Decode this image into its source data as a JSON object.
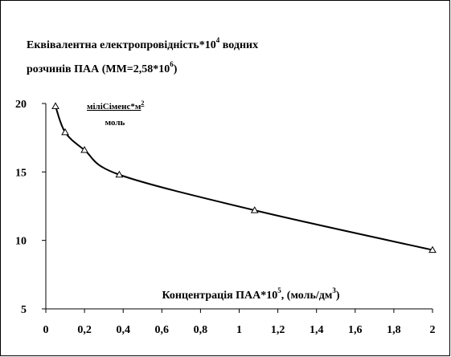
{
  "chart_data": {
    "type": "line",
    "title_parts": [
      "Еквівалентна електропровідність*10",
      "4",
      " водних",
      "розчинів ПАА (ММ=2,58*10",
      "6",
      ")"
    ],
    "units_parts": [
      "мiлiСiменс*м",
      "2",
      "моль"
    ],
    "x_label_parts": [
      "Концентрація ПАА*10",
      "5",
      ", (моль/дм",
      "3",
      ")"
    ],
    "marker": "triangle",
    "series": [
      {
        "color": "#000000",
        "x": [
          0.05,
          0.1,
          0.2,
          0.38,
          1.08,
          2.0
        ],
        "values": [
          19.8,
          17.9,
          16.6,
          14.8,
          12.2,
          9.3
        ]
      }
    ],
    "xlim": [
      0,
      2
    ],
    "xticks": [
      0,
      {
        "value": 0.2,
        "label": "0,2"
      },
      {
        "value": 0.4,
        "label": "0,4"
      },
      {
        "value": 0.6,
        "label": "0,6"
      },
      {
        "value": 0.8,
        "label": "0,8"
      },
      1,
      {
        "value": 1.2,
        "label": "1,2"
      },
      {
        "value": 1.4,
        "label": "1,4"
      },
      {
        "value": 1.6,
        "label": "1,6"
      },
      {
        "value": 1.8,
        "label": "1,8"
      },
      2
    ],
    "ylim": [
      5,
      20
    ],
    "yticks": [
      5,
      10,
      15,
      20
    ]
  }
}
